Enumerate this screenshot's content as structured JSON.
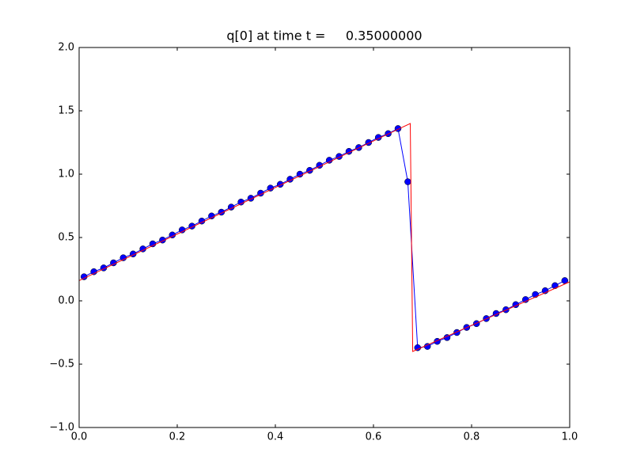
{
  "chart_data": {
    "type": "line",
    "title": "q[0] at time t =     0.35000000",
    "xlim": [
      0,
      1
    ],
    "ylim": [
      -1,
      2
    ],
    "xticks": [
      {
        "value": 0,
        "label": "0.0"
      },
      0.2,
      0.4,
      0.6,
      0.8,
      {
        "value": 1,
        "label": "1.0"
      }
    ],
    "yticks": [
      {
        "value": -1,
        "label": "−1.0"
      },
      {
        "value": -0.5,
        "label": "−0.5"
      },
      {
        "value": 0,
        "label": "0.0"
      },
      0.5,
      {
        "value": 1,
        "label": "1.0"
      },
      1.5,
      {
        "value": 2,
        "label": "2.0"
      }
    ],
    "series": [
      {
        "color": "#0000ff",
        "marker": true,
        "x": [
          0.01,
          0.03,
          0.05,
          0.07,
          0.09,
          0.11,
          0.13,
          0.15,
          0.17,
          0.19,
          0.21,
          0.23,
          0.25,
          0.27,
          0.29,
          0.31,
          0.33,
          0.35,
          0.37,
          0.39,
          0.41,
          0.43,
          0.45,
          0.47,
          0.49,
          0.51,
          0.53,
          0.55,
          0.57,
          0.59,
          0.61,
          0.63,
          0.65,
          0.67,
          0.69,
          0.71,
          0.73,
          0.75,
          0.77,
          0.79,
          0.81,
          0.83,
          0.85,
          0.87,
          0.89,
          0.91,
          0.93,
          0.95,
          0.97,
          0.99
        ],
        "values": [
          0.19,
          0.23,
          0.26,
          0.3,
          0.34,
          0.37,
          0.41,
          0.45,
          0.48,
          0.52,
          0.56,
          0.59,
          0.63,
          0.67,
          0.7,
          0.74,
          0.78,
          0.81,
          0.85,
          0.89,
          0.92,
          0.96,
          1.0,
          1.03,
          1.07,
          1.11,
          1.14,
          1.18,
          1.21,
          1.25,
          1.29,
          1.32,
          1.36,
          0.94,
          -0.37,
          -0.36,
          -0.32,
          -0.29,
          -0.25,
          -0.21,
          -0.18,
          -0.14,
          -0.1,
          -0.07,
          -0.03,
          0.01,
          0.05,
          0.08,
          0.12,
          0.16
        ]
      },
      {
        "color": "#ff0000",
        "marker": false,
        "x": [
          0,
          0.675,
          0.68,
          1.0
        ],
        "values": [
          0.16,
          1.4,
          -0.4,
          0.15
        ]
      }
    ]
  }
}
